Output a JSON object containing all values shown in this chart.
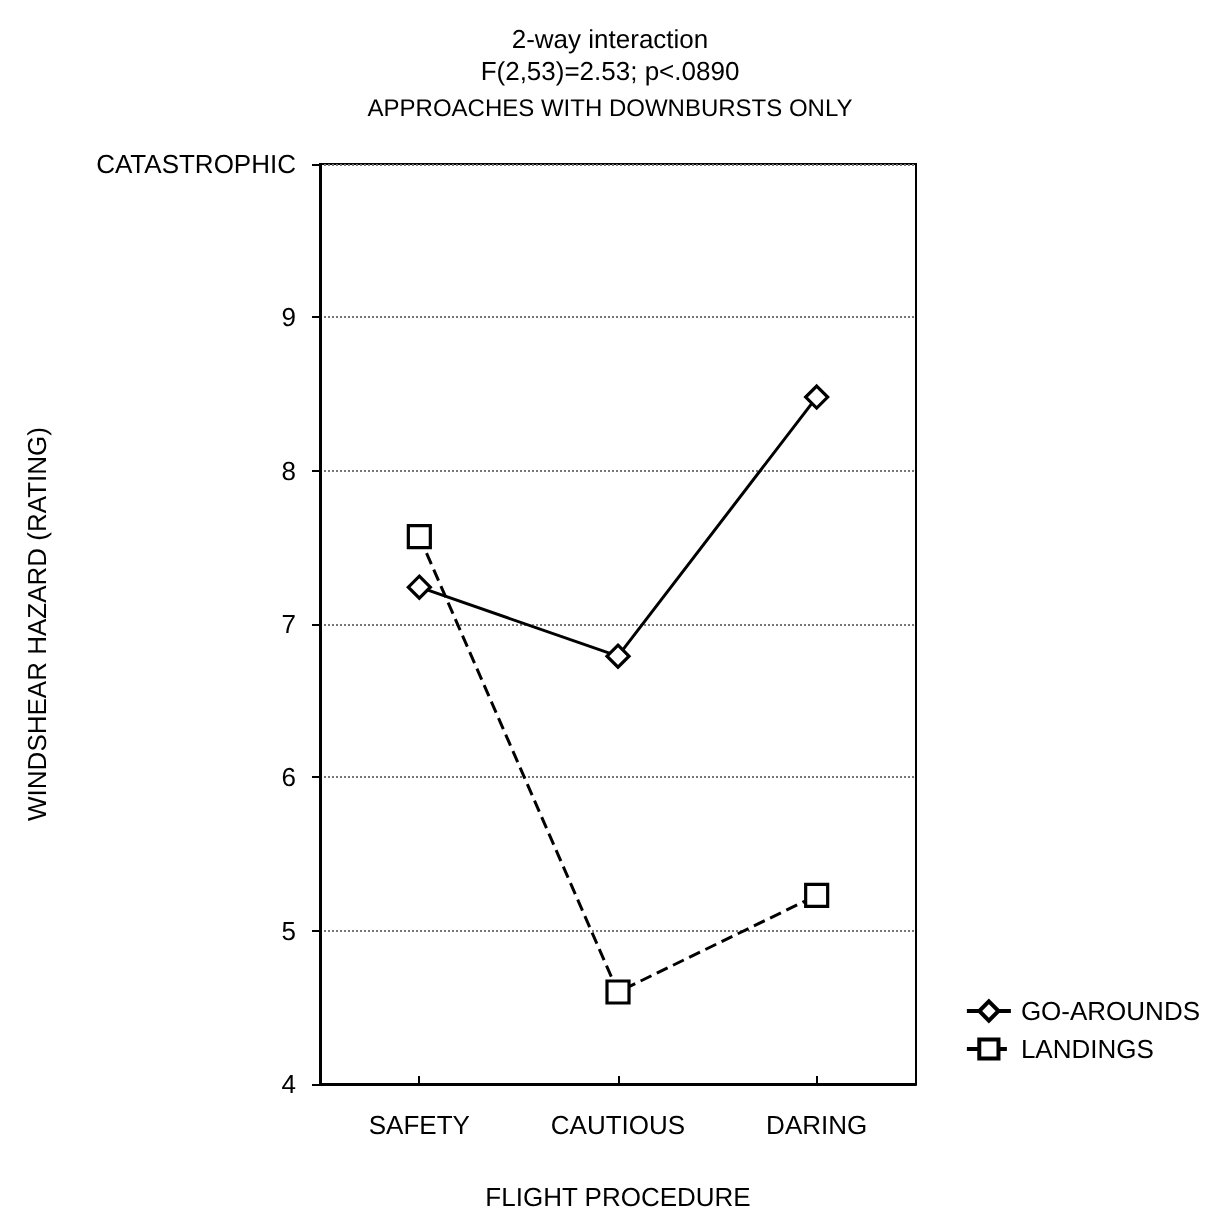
{
  "chart_data": {
    "type": "line",
    "title": "2-way interaction",
    "subtitle": "F(2,53)=2.53; p<.0890",
    "annotations": [
      "APPROACHES WITH DOWNBURSTS ONLY"
    ],
    "xlabel": "FLIGHT PROCEDURE",
    "ylabel": "WINDSHEAR HAZARD (RATING)",
    "categories": [
      "SAFETY",
      "CAUTIOUS",
      "DARING"
    ],
    "series": [
      {
        "name": "GO-AROUNDS",
        "color": "#000000",
        "marker": "diamond",
        "line_style": "solid",
        "values": [
          7.24,
          6.79,
          8.48
        ]
      },
      {
        "name": "LANDINGS",
        "color": "#000000",
        "marker": "square",
        "line_style": "dashed",
        "values": [
          7.57,
          4.6,
          5.23
        ]
      }
    ],
    "ylim": [
      4,
      10
    ],
    "yticks": [
      4,
      5,
      6,
      7,
      8,
      9,
      {
        "value": 10,
        "label": "CATASTROPHIC"
      }
    ],
    "grid": "y",
    "legend": "bottom right"
  }
}
